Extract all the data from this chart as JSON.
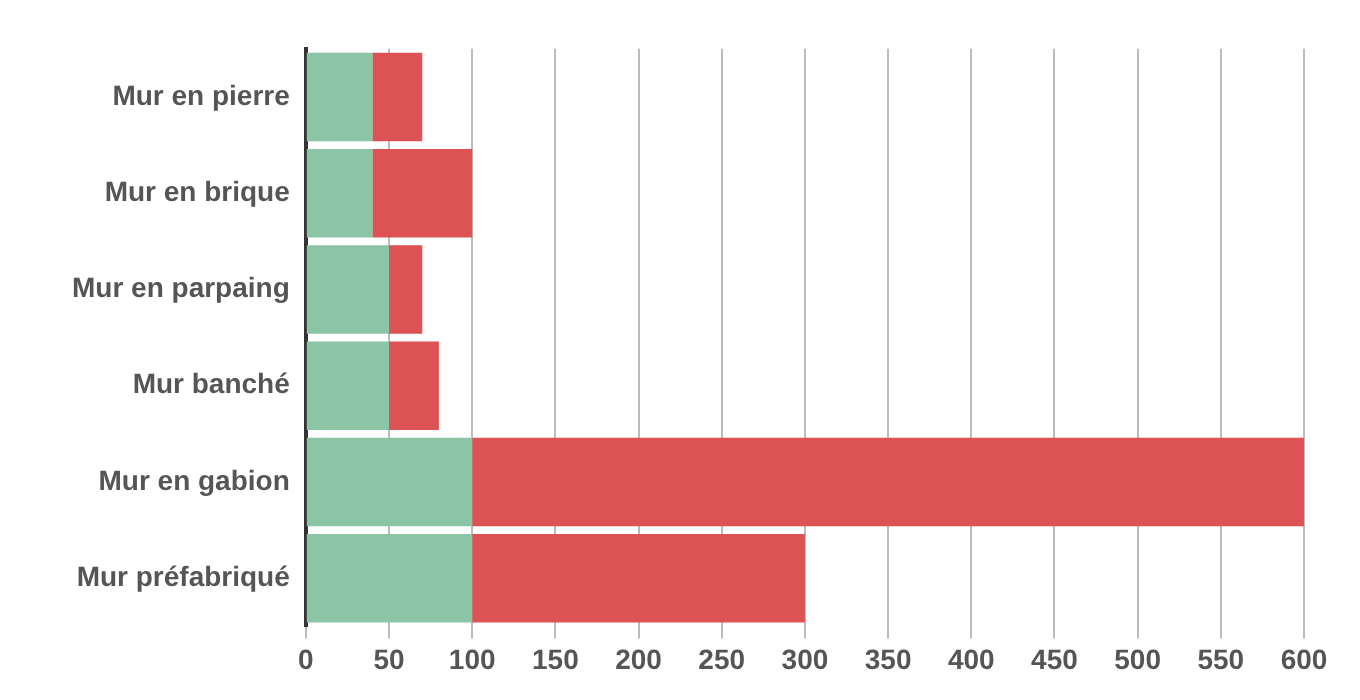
{
  "chart_data": {
    "type": "bar",
    "orientation": "horizontal",
    "stacked": true,
    "categories": [
      "Mur en pierre",
      "Mur en brique",
      "Mur en parpaing",
      "Mur banché",
      "Mur en gabion",
      "Mur préfabriqué"
    ],
    "series": [
      {
        "color": "#8cc4a6",
        "values": [
          40,
          40,
          50,
          50,
          100,
          100
        ]
      },
      {
        "color": "#dd5255",
        "values": [
          30,
          60,
          20,
          30,
          500,
          200
        ]
      }
    ],
    "xlim": [
      0,
      600
    ],
    "xticks": [
      0,
      50,
      100,
      150,
      200,
      250,
      300,
      350,
      400,
      450,
      500,
      550,
      600
    ],
    "grid": "x",
    "legend": false
  }
}
